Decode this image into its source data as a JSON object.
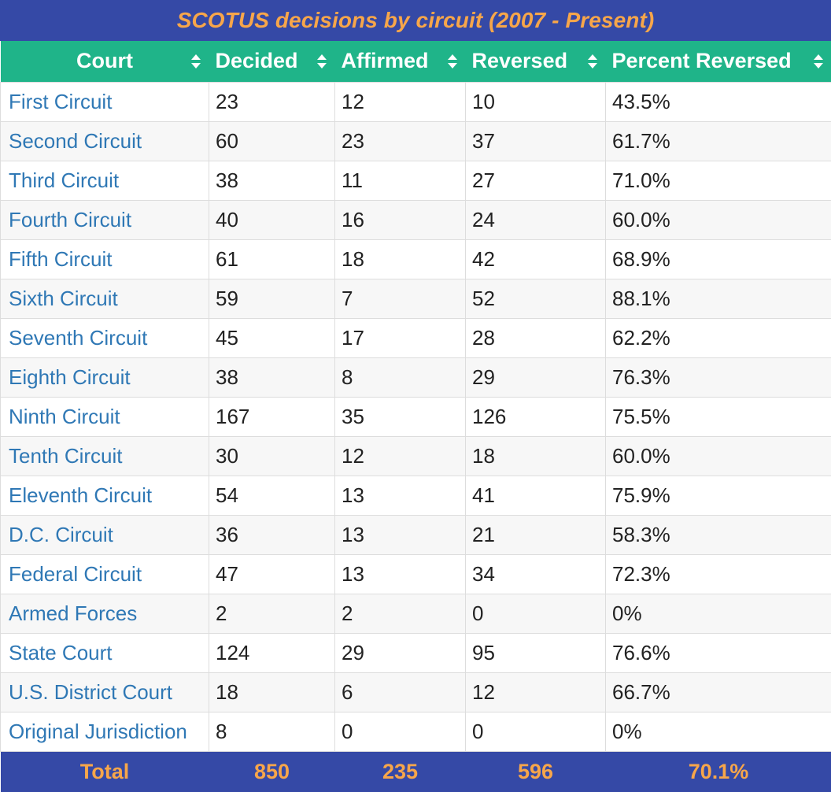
{
  "title": "SCOTUS decisions by circuit (2007 - Present)",
  "columns": [
    "Court",
    "Decided",
    "Affirmed",
    "Reversed",
    "Percent Reversed"
  ],
  "rows": [
    {
      "court": "First Circuit",
      "decided": "23",
      "affirmed": "12",
      "reversed": "10",
      "percent": "43.5%"
    },
    {
      "court": "Second Circuit",
      "decided": "60",
      "affirmed": "23",
      "reversed": "37",
      "percent": "61.7%"
    },
    {
      "court": "Third Circuit",
      "decided": "38",
      "affirmed": "11",
      "reversed": "27",
      "percent": "71.0%"
    },
    {
      "court": "Fourth Circuit",
      "decided": "40",
      "affirmed": "16",
      "reversed": "24",
      "percent": "60.0%"
    },
    {
      "court": "Fifth Circuit",
      "decided": "61",
      "affirmed": "18",
      "reversed": "42",
      "percent": "68.9%"
    },
    {
      "court": "Sixth Circuit",
      "decided": "59",
      "affirmed": "7",
      "reversed": "52",
      "percent": "88.1%"
    },
    {
      "court": "Seventh Circuit",
      "decided": "45",
      "affirmed": "17",
      "reversed": "28",
      "percent": "62.2%"
    },
    {
      "court": "Eighth Circuit",
      "decided": "38",
      "affirmed": "8",
      "reversed": "29",
      "percent": "76.3%"
    },
    {
      "court": "Ninth Circuit",
      "decided": "167",
      "affirmed": "35",
      "reversed": "126",
      "percent": "75.5%"
    },
    {
      "court": "Tenth Circuit",
      "decided": "30",
      "affirmed": "12",
      "reversed": "18",
      "percent": "60.0%"
    },
    {
      "court": "Eleventh Circuit",
      "decided": "54",
      "affirmed": "13",
      "reversed": "41",
      "percent": "75.9%"
    },
    {
      "court": "D.C. Circuit",
      "decided": "36",
      "affirmed": "13",
      "reversed": "21",
      "percent": "58.3%"
    },
    {
      "court": "Federal Circuit",
      "decided": "47",
      "affirmed": "13",
      "reversed": "34",
      "percent": "72.3%"
    },
    {
      "court": "Armed Forces",
      "decided": "2",
      "affirmed": "2",
      "reversed": "0",
      "percent": "0%"
    },
    {
      "court": "State Court",
      "decided": "124",
      "affirmed": "29",
      "reversed": "95",
      "percent": "76.6%"
    },
    {
      "court": "U.S. District Court",
      "decided": "18",
      "affirmed": "6",
      "reversed": "12",
      "percent": "66.7%"
    },
    {
      "court": "Original Jurisdiction",
      "decided": "8",
      "affirmed": "0",
      "reversed": "0",
      "percent": "0%"
    }
  ],
  "total": {
    "label": "Total",
    "decided": "850",
    "affirmed": "235",
    "reversed": "596",
    "percent": "70.1%"
  },
  "icons": {
    "sort": "sort-icon"
  },
  "colors": {
    "title_bg": "#3549a6",
    "title_text": "#f7a64a",
    "header_bg": "#1fb489",
    "link": "#2f78b5"
  }
}
